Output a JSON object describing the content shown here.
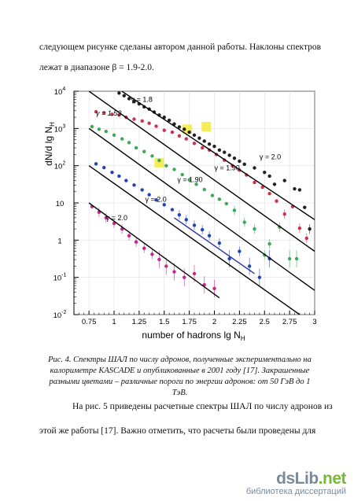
{
  "text": {
    "para1": "следующем рисунке сделаны автором данной работы. Наклоны спектров",
    "para2": "лежат в диапазоне β = 1.9-2.0.",
    "caption": "Рис. 4. Спектры ШАЛ по числу адронов, полученные экспериментально на калориметре KASCADE и опубликованные в 2001 году [17]. Закрашенные разными цветами – различные пороги по энергии адронов: от 50 ГэВ до 1 ТэВ.",
    "para3": "На рис. 5 приведены расчетные спектры ШАЛ по числу адронов из",
    "para4": "этой же работы [17]. Важно отметить, что расчеты были проведены для"
  },
  "watermark": {
    "logo_main": "dsLib",
    "logo_tld": ".net",
    "subtitle": "библиотека диссертаций"
  },
  "chart_data": {
    "type": "scatter",
    "xlabel": "number of hadrons lg N",
    "xlabel_sub": "H",
    "ylabel": "dN/d lg N",
    "ylabel_sub": "H",
    "xlim": [
      0.6,
      3.0
    ],
    "ylim": [
      -2,
      4
    ],
    "log_y": true,
    "x_ticks": [
      "0.75",
      "1",
      "1.25",
      "1.5",
      "1.75",
      "2",
      "2.25",
      "2.5",
      "2.75",
      "3"
    ],
    "x_tick_values": [
      0.75,
      1.0,
      1.25,
      1.5,
      1.75,
      2.0,
      2.25,
      2.5,
      2.75,
      3.0
    ],
    "y_ticks": [
      {
        "base": "10",
        "exp": "-2",
        "v": -2
      },
      {
        "base": "10",
        "exp": "-1",
        "v": -1
      },
      {
        "base": "1",
        "exp": "",
        "v": 0
      },
      {
        "base": "10",
        "exp": "",
        "v": 1
      },
      {
        "base": "10",
        "exp": "2",
        "v": 2
      },
      {
        "base": "10",
        "exp": "3",
        "v": 3
      },
      {
        "base": "10",
        "exp": "4",
        "v": 4
      }
    ],
    "series": [
      {
        "color": "#222222",
        "x": [
          1.05,
          1.1,
          1.15,
          1.2,
          1.25,
          1.3,
          1.35,
          1.4,
          1.45,
          1.5,
          1.55,
          1.6,
          1.65,
          1.7,
          1.75,
          1.8,
          1.85,
          1.9,
          1.95,
          2.0,
          2.05,
          2.1,
          2.15,
          2.2,
          2.25,
          2.3,
          2.4,
          2.5,
          2.55,
          2.6,
          2.7,
          2.8,
          2.85,
          2.9,
          2.95
        ],
        "lgy": [
          3.95,
          3.88,
          3.8,
          3.72,
          3.66,
          3.58,
          3.52,
          3.44,
          3.36,
          3.3,
          3.22,
          3.12,
          3.04,
          2.98,
          2.9,
          2.82,
          2.74,
          2.66,
          2.58,
          2.52,
          2.42,
          2.36,
          2.28,
          2.2,
          2.12,
          2.04,
          1.94,
          1.82,
          1.72,
          1.5,
          1.6,
          1.38,
          1.35,
          0.88,
          0.3
        ]
      },
      {
        "color": "#d03048",
        "x": [
          0.82,
          0.9,
          0.98,
          1.05,
          1.12,
          1.2,
          1.28,
          1.35,
          1.42,
          1.5,
          1.58,
          1.65,
          1.72,
          1.8,
          1.88,
          1.95,
          2.02,
          2.1,
          2.18,
          2.25,
          2.32,
          2.4,
          2.48,
          2.55,
          2.62,
          2.7,
          2.78,
          2.85,
          2.92
        ],
        "lgy": [
          3.45,
          3.42,
          3.38,
          3.36,
          3.3,
          3.25,
          3.2,
          3.14,
          3.06,
          2.95,
          2.9,
          2.8,
          2.72,
          2.6,
          2.48,
          2.42,
          2.3,
          2.15,
          2.0,
          1.88,
          1.75,
          1.55,
          1.42,
          1.25,
          1.05,
          0.7,
          0.9,
          0.32,
          0.05
        ]
      },
      {
        "color": "#3ea85a",
        "x": [
          0.78,
          0.85,
          0.92,
          1.0,
          1.08,
          1.15,
          1.22,
          1.3,
          1.38,
          1.45,
          1.52,
          1.6,
          1.68,
          1.75,
          1.82,
          1.9,
          1.98,
          2.05,
          2.12,
          2.2,
          2.3,
          2.4,
          2.5,
          2.55,
          2.65,
          2.75,
          2.82
        ],
        "lgy": [
          3.05,
          2.98,
          2.92,
          2.82,
          2.72,
          2.62,
          2.48,
          2.38,
          2.26,
          2.14,
          2.0,
          1.9,
          1.76,
          1.62,
          1.5,
          1.36,
          1.2,
          1.1,
          0.98,
          0.8,
          0.48,
          0.3,
          -0.4,
          -0.1,
          0.35,
          -0.5,
          -0.5
        ]
      },
      {
        "color": "#2244b8",
        "x": [
          0.82,
          0.9,
          0.98,
          1.05,
          1.12,
          1.2,
          1.28,
          1.35,
          1.42,
          1.5,
          1.58,
          1.65,
          1.72,
          1.8,
          1.88,
          1.95,
          2.05,
          2.15,
          2.25,
          2.35,
          2.45,
          2.55
        ],
        "lgy": [
          2.05,
          1.95,
          1.82,
          1.72,
          1.6,
          1.48,
          1.35,
          1.22,
          1.08,
          0.95,
          0.82,
          0.68,
          0.55,
          0.4,
          0.28,
          0.12,
          -0.08,
          -0.5,
          -0.3,
          -0.7,
          -1.0,
          -0.5
        ]
      },
      {
        "color": "#c22890",
        "x": [
          0.78,
          0.85,
          0.92,
          1.0,
          1.08,
          1.15,
          1.22,
          1.3,
          1.38,
          1.45,
          1.52,
          1.6,
          1.7,
          1.8,
          1.9,
          2.0
        ],
        "lgy": [
          0.9,
          0.75,
          0.6,
          0.45,
          0.3,
          0.12,
          -0.05,
          -0.22,
          -0.38,
          -0.52,
          -0.7,
          -0.85,
          -1.0,
          -0.9,
          -1.2,
          -1.3
        ]
      }
    ],
    "fit_lines": [
      {
        "color": "#000000",
        "x": [
          1.05,
          3.0
        ],
        "lgy": [
          4.05,
          0.55
        ]
      },
      {
        "color": "#000000",
        "x": [
          0.75,
          3.0
        ],
        "lgy": [
          4.0,
          -0.3
        ]
      },
      {
        "color": "#000000",
        "x": [
          0.75,
          3.0
        ],
        "lgy": [
          3.0,
          -1.35
        ]
      },
      {
        "color": "#000000",
        "x": [
          0.75,
          2.85
        ],
        "lgy": [
          2.0,
          -2.0
        ]
      },
      {
        "color": "#000000",
        "x": [
          0.75,
          2.05
        ],
        "lgy": [
          1.0,
          -1.55
        ]
      },
      {
        "color": "#2233aa",
        "x": [
          1.6,
          2.4
        ],
        "lgy": [
          0.6,
          -0.9
        ]
      }
    ],
    "highlights": [
      {
        "x": 1.45,
        "lgy": 2.08
      },
      {
        "x": 1.73,
        "lgy": 2.98
      },
      {
        "x": 1.92,
        "lgy": 3.05
      }
    ],
    "annotations": [
      {
        "text": "γ = 1.8",
        "x": 1.17,
        "lgy": 3.72,
        "style": "normal"
      },
      {
        "text": "γ = 1.53",
        "x": 0.82,
        "lgy": 3.34,
        "style": "italic"
      },
      {
        "text": "γ = 2.0",
        "x": 2.45,
        "lgy": 2.17,
        "style": "normal"
      },
      {
        "text": "γ = 1.90",
        "x": 2.0,
        "lgy": 1.88,
        "style": "normal"
      },
      {
        "text": "γ = 1.90",
        "x": 1.63,
        "lgy": 1.56,
        "style": "normal"
      },
      {
        "text": "γ = 2.0",
        "x": 1.31,
        "lgy": 1.03,
        "style": "normal"
      },
      {
        "text": "γ = 2.0",
        "x": 0.92,
        "lgy": 0.53,
        "style": "normal"
      }
    ]
  }
}
